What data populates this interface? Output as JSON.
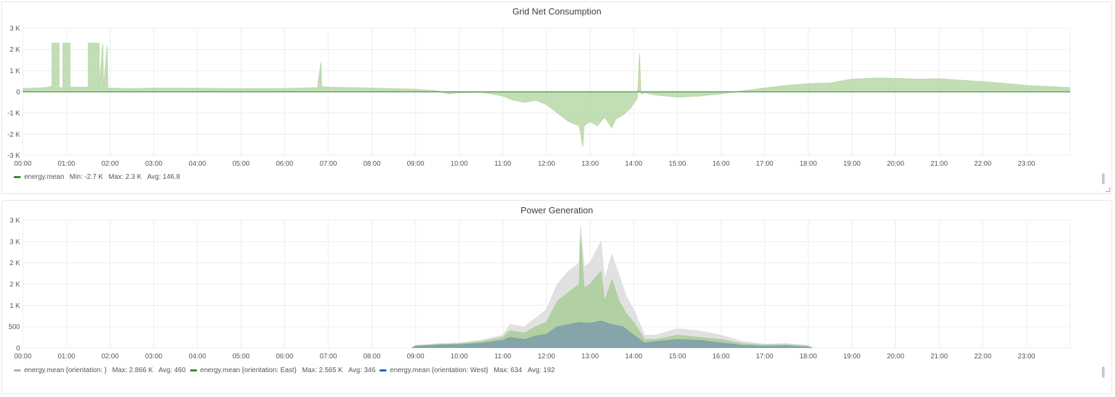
{
  "chart_data": [
    {
      "type": "area",
      "title": "Grid Net Consumption",
      "xlabel": "",
      "ylabel": "",
      "x_tick_labels": [
        "00:00",
        "01:00",
        "02:00",
        "03:00",
        "04:00",
        "05:00",
        "06:00",
        "07:00",
        "08:00",
        "09:00",
        "10:00",
        "11:00",
        "12:00",
        "13:00",
        "14:00",
        "15:00",
        "16:00",
        "17:00",
        "18:00",
        "19:00",
        "20:00",
        "21:00",
        "22:00",
        "23:00"
      ],
      "xlim": [
        "00:00",
        "24:00"
      ],
      "y_ticks": [
        3000,
        2000,
        1000,
        0,
        -1000,
        -2000,
        -3000
      ],
      "y_tick_labels": [
        "3 K",
        "2 K",
        "1 K",
        "0",
        "-1 K",
        "-2 K",
        "-3 K"
      ],
      "ylim": [
        -3000,
        3000
      ],
      "grid": true,
      "legend_position": "bottom-left",
      "series": [
        {
          "name": "energy.mean",
          "color": "#37872d",
          "fill_color": "#b7d8a8",
          "stats": {
            "min": "Min: -2.7 K",
            "max": "Max: 2.3 K",
            "avg": "Avg: 146.8"
          },
          "points": [
            [
              "00:00",
              150
            ],
            [
              "00:30",
              200
            ],
            [
              "00:40",
              250
            ],
            [
              "00:40",
              2300
            ],
            [
              "00:50",
              2300
            ],
            [
              "00:50",
              200
            ],
            [
              "00:55",
              200
            ],
            [
              "00:55",
              2300
            ],
            [
              "01:05",
              2300
            ],
            [
              "01:05",
              220
            ],
            [
              "01:30",
              220
            ],
            [
              "01:30",
              2300
            ],
            [
              "01:45",
              2300
            ],
            [
              "01:45",
              250
            ],
            [
              "01:50",
              2300
            ],
            [
              "01:51",
              200
            ],
            [
              "01:56",
              2200
            ],
            [
              "01:57",
              180
            ],
            [
              "02:30",
              150
            ],
            [
              "03:00",
              180
            ],
            [
              "04:00",
              170
            ],
            [
              "05:00",
              150
            ],
            [
              "06:00",
              160
            ],
            [
              "06:45",
              200
            ],
            [
              "06:50",
              1400
            ],
            [
              "06:51",
              250
            ],
            [
              "07:00",
              220
            ],
            [
              "08:00",
              180
            ],
            [
              "09:00",
              120
            ],
            [
              "09:30",
              50
            ],
            [
              "09:45",
              -100
            ],
            [
              "10:00",
              -50
            ],
            [
              "10:30",
              -30
            ],
            [
              "10:45",
              -100
            ],
            [
              "11:00",
              -200
            ],
            [
              "11:15",
              -400
            ],
            [
              "11:30",
              -500
            ],
            [
              "11:45",
              -400
            ],
            [
              "12:00",
              -600
            ],
            [
              "12:15",
              -1000
            ],
            [
              "12:30",
              -1400
            ],
            [
              "12:45",
              -1600
            ],
            [
              "12:50",
              -2600
            ],
            [
              "12:52",
              -1600
            ],
            [
              "13:00",
              -1400
            ],
            [
              "13:10",
              -1600
            ],
            [
              "13:20",
              -1200
            ],
            [
              "13:30",
              -1700
            ],
            [
              "13:35",
              -1300
            ],
            [
              "13:45",
              -1100
            ],
            [
              "13:55",
              -800
            ],
            [
              "14:05",
              -300
            ],
            [
              "14:08",
              1800
            ],
            [
              "14:10",
              -100
            ],
            [
              "14:15",
              -50
            ],
            [
              "14:30",
              -150
            ],
            [
              "14:45",
              -200
            ],
            [
              "15:00",
              -250
            ],
            [
              "15:30",
              -200
            ],
            [
              "16:00",
              -100
            ],
            [
              "16:30",
              50
            ],
            [
              "17:00",
              180
            ],
            [
              "17:30",
              300
            ],
            [
              "18:00",
              380
            ],
            [
              "18:30",
              420
            ],
            [
              "19:00",
              600
            ],
            [
              "19:30",
              650
            ],
            [
              "20:00",
              640
            ],
            [
              "20:30",
              600
            ],
            [
              "21:00",
              620
            ],
            [
              "21:30",
              550
            ],
            [
              "22:00",
              480
            ],
            [
              "22:30",
              400
            ],
            [
              "23:00",
              300
            ],
            [
              "23:30",
              250
            ],
            [
              "24:00",
              200
            ]
          ]
        }
      ]
    },
    {
      "type": "area",
      "title": "Power Generation",
      "xlabel": "",
      "ylabel": "",
      "x_tick_labels": [
        "00:00",
        "01:00",
        "02:00",
        "03:00",
        "04:00",
        "05:00",
        "06:00",
        "07:00",
        "08:00",
        "09:00",
        "10:00",
        "11:00",
        "12:00",
        "13:00",
        "14:00",
        "15:00",
        "16:00",
        "17:00",
        "18:00",
        "19:00",
        "20:00",
        "21:00",
        "22:00",
        "23:00"
      ],
      "xlim": [
        "00:00",
        "24:00"
      ],
      "y_ticks": [
        3000,
        2500,
        2000,
        1500,
        1000,
        500,
        0
      ],
      "y_tick_labels": [
        "3 K",
        "3 K",
        "2 K",
        "2 K",
        "1 K",
        "500",
        "0"
      ],
      "ylim": [
        0,
        3000
      ],
      "grid": true,
      "stacked": false,
      "legend_position": "bottom-left",
      "series": [
        {
          "name": "energy.mean {orientation: }",
          "color": "#b0b0b0",
          "fill_color": "#dcdcdc",
          "stats": {
            "max": "Max: 2.866 K",
            "avg": "Avg: 460"
          },
          "points": [
            [
              "08:55",
              0
            ],
            [
              "09:00",
              60
            ],
            [
              "09:30",
              100
            ],
            [
              "10:00",
              120
            ],
            [
              "10:30",
              180
            ],
            [
              "11:00",
              300
            ],
            [
              "11:10",
              550
            ],
            [
              "11:30",
              500
            ],
            [
              "11:45",
              700
            ],
            [
              "12:00",
              900
            ],
            [
              "12:15",
              1500
            ],
            [
              "12:30",
              1800
            ],
            [
              "12:45",
              2000
            ],
            [
              "12:47",
              2866
            ],
            [
              "12:52",
              1900
            ],
            [
              "13:00",
              2000
            ],
            [
              "13:15",
              2500
            ],
            [
              "13:20",
              1600
            ],
            [
              "13:30",
              2200
            ],
            [
              "13:40",
              1700
            ],
            [
              "13:50",
              1200
            ],
            [
              "14:00",
              900
            ],
            [
              "14:15",
              300
            ],
            [
              "14:30",
              300
            ],
            [
              "15:00",
              450
            ],
            [
              "15:30",
              400
            ],
            [
              "16:00",
              300
            ],
            [
              "16:30",
              150
            ],
            [
              "17:00",
              90
            ],
            [
              "17:30",
              100
            ],
            [
              "18:00",
              60
            ],
            [
              "18:05",
              0
            ]
          ]
        },
        {
          "name": "energy.mean {orientation: East}",
          "color": "#37872d",
          "fill_color": "#a9cc97",
          "stats": {
            "max": "Max: 2.565 K",
            "avg": "Avg: 346"
          },
          "points": [
            [
              "08:55",
              0
            ],
            [
              "09:00",
              50
            ],
            [
              "09:30",
              80
            ],
            [
              "10:00",
              100
            ],
            [
              "10:30",
              150
            ],
            [
              "11:00",
              250
            ],
            [
              "11:10",
              400
            ],
            [
              "11:30",
              350
            ],
            [
              "11:45",
              500
            ],
            [
              "12:00",
              600
            ],
            [
              "12:15",
              1100
            ],
            [
              "12:30",
              1300
            ],
            [
              "12:45",
              1500
            ],
            [
              "12:47",
              2565
            ],
            [
              "12:52",
              1400
            ],
            [
              "13:00",
              1500
            ],
            [
              "13:15",
              1800
            ],
            [
              "13:20",
              1100
            ],
            [
              "13:30",
              1600
            ],
            [
              "13:40",
              1100
            ],
            [
              "13:50",
              800
            ],
            [
              "14:00",
              600
            ],
            [
              "14:15",
              200
            ],
            [
              "14:30",
              200
            ],
            [
              "15:00",
              300
            ],
            [
              "15:30",
              250
            ],
            [
              "16:00",
              200
            ],
            [
              "16:30",
              100
            ],
            [
              "17:00",
              70
            ],
            [
              "17:30",
              80
            ],
            [
              "18:00",
              40
            ],
            [
              "18:05",
              0
            ]
          ]
        },
        {
          "name": "energy.mean {orientation: West}",
          "color": "#1f60c4",
          "fill_color": "#7c9eab",
          "stats": {
            "max": "Max: 634",
            "avg": "Avg: 192"
          },
          "points": [
            [
              "08:55",
              0
            ],
            [
              "09:00",
              40
            ],
            [
              "09:30",
              70
            ],
            [
              "10:00",
              80
            ],
            [
              "10:30",
              110
            ],
            [
              "11:00",
              180
            ],
            [
              "11:10",
              250
            ],
            [
              "11:30",
              200
            ],
            [
              "11:45",
              280
            ],
            [
              "12:00",
              320
            ],
            [
              "12:15",
              500
            ],
            [
              "12:30",
              550
            ],
            [
              "12:45",
              600
            ],
            [
              "13:00",
              580
            ],
            [
              "13:15",
              634
            ],
            [
              "13:30",
              550
            ],
            [
              "13:45",
              500
            ],
            [
              "14:00",
              300
            ],
            [
              "14:15",
              120
            ],
            [
              "14:30",
              150
            ],
            [
              "15:00",
              200
            ],
            [
              "15:30",
              180
            ],
            [
              "16:00",
              120
            ],
            [
              "16:30",
              60
            ],
            [
              "17:00",
              40
            ],
            [
              "17:30",
              50
            ],
            [
              "18:00",
              20
            ],
            [
              "18:05",
              0
            ]
          ]
        }
      ]
    }
  ]
}
